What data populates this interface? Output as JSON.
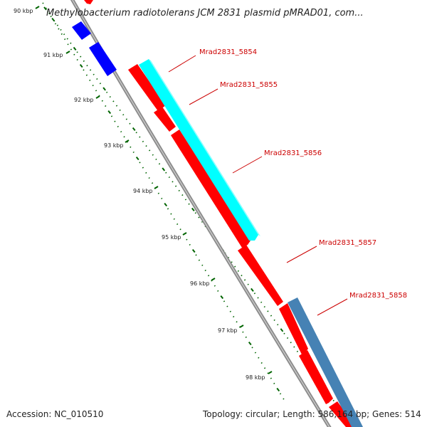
{
  "map": {
    "title": "Methylobacterium radiotolerans JCM 2831 plasmid pMRAD01, com...",
    "accession": "Accession: NC_010510",
    "summary": "Topology: circular; Length: 586,164 bp; Genes: 514",
    "ticks": [
      "90 kbp",
      "91 kbp",
      "92 kbp",
      "93 kbp",
      "94 kbp",
      "95 kbp",
      "96 kbp",
      "97 kbp",
      "98 kbp"
    ],
    "genes": [
      {
        "name": "Mrad2831_5854",
        "color": "#00ffff"
      },
      {
        "name": "Mrad2831_5855",
        "color": "#ff0000"
      },
      {
        "name": "Mrad2831_5856",
        "color": "#ff0000"
      },
      {
        "name": "Mrad2831_5857",
        "color": "#ff0000"
      },
      {
        "name": "Mrad2831_5858",
        "color": "#4682b4"
      }
    ],
    "colors": {
      "backbone": "#8c8c8c",
      "tick": "#006400",
      "label": "#cc0000",
      "reverse_cds": "#0000ff",
      "cds_forward": "#ff0000",
      "cds_cyan": "#00ffff",
      "cds_steel": "#4682b4"
    }
  }
}
